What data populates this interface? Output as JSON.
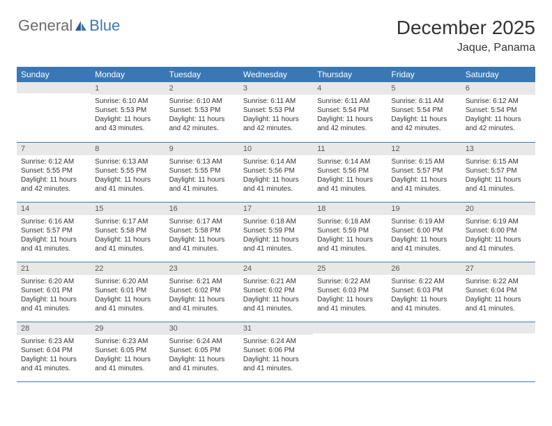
{
  "logo": {
    "general": "General",
    "blue": "Blue"
  },
  "title": "December 2025",
  "location": "Jaque, Panama",
  "colors": {
    "header_bg": "#3a78b5",
    "header_text": "#ffffff",
    "daynum_bg": "#e8e8e8",
    "text": "#333333",
    "rule": "#3a78b5"
  },
  "weekdays": [
    "Sunday",
    "Monday",
    "Tuesday",
    "Wednesday",
    "Thursday",
    "Friday",
    "Saturday"
  ],
  "weeks": [
    [
      {
        "n": "",
        "sr": "",
        "ss": "",
        "dl": ""
      },
      {
        "n": "1",
        "sr": "Sunrise: 6:10 AM",
        "ss": "Sunset: 5:53 PM",
        "dl": "Daylight: 11 hours and 43 minutes."
      },
      {
        "n": "2",
        "sr": "Sunrise: 6:10 AM",
        "ss": "Sunset: 5:53 PM",
        "dl": "Daylight: 11 hours and 42 minutes."
      },
      {
        "n": "3",
        "sr": "Sunrise: 6:11 AM",
        "ss": "Sunset: 5:53 PM",
        "dl": "Daylight: 11 hours and 42 minutes."
      },
      {
        "n": "4",
        "sr": "Sunrise: 6:11 AM",
        "ss": "Sunset: 5:54 PM",
        "dl": "Daylight: 11 hours and 42 minutes."
      },
      {
        "n": "5",
        "sr": "Sunrise: 6:11 AM",
        "ss": "Sunset: 5:54 PM",
        "dl": "Daylight: 11 hours and 42 minutes."
      },
      {
        "n": "6",
        "sr": "Sunrise: 6:12 AM",
        "ss": "Sunset: 5:54 PM",
        "dl": "Daylight: 11 hours and 42 minutes."
      }
    ],
    [
      {
        "n": "7",
        "sr": "Sunrise: 6:12 AM",
        "ss": "Sunset: 5:55 PM",
        "dl": "Daylight: 11 hours and 42 minutes."
      },
      {
        "n": "8",
        "sr": "Sunrise: 6:13 AM",
        "ss": "Sunset: 5:55 PM",
        "dl": "Daylight: 11 hours and 41 minutes."
      },
      {
        "n": "9",
        "sr": "Sunrise: 6:13 AM",
        "ss": "Sunset: 5:55 PM",
        "dl": "Daylight: 11 hours and 41 minutes."
      },
      {
        "n": "10",
        "sr": "Sunrise: 6:14 AM",
        "ss": "Sunset: 5:56 PM",
        "dl": "Daylight: 11 hours and 41 minutes."
      },
      {
        "n": "11",
        "sr": "Sunrise: 6:14 AM",
        "ss": "Sunset: 5:56 PM",
        "dl": "Daylight: 11 hours and 41 minutes."
      },
      {
        "n": "12",
        "sr": "Sunrise: 6:15 AM",
        "ss": "Sunset: 5:57 PM",
        "dl": "Daylight: 11 hours and 41 minutes."
      },
      {
        "n": "13",
        "sr": "Sunrise: 6:15 AM",
        "ss": "Sunset: 5:57 PM",
        "dl": "Daylight: 11 hours and 41 minutes."
      }
    ],
    [
      {
        "n": "14",
        "sr": "Sunrise: 6:16 AM",
        "ss": "Sunset: 5:57 PM",
        "dl": "Daylight: 11 hours and 41 minutes."
      },
      {
        "n": "15",
        "sr": "Sunrise: 6:17 AM",
        "ss": "Sunset: 5:58 PM",
        "dl": "Daylight: 11 hours and 41 minutes."
      },
      {
        "n": "16",
        "sr": "Sunrise: 6:17 AM",
        "ss": "Sunset: 5:58 PM",
        "dl": "Daylight: 11 hours and 41 minutes."
      },
      {
        "n": "17",
        "sr": "Sunrise: 6:18 AM",
        "ss": "Sunset: 5:59 PM",
        "dl": "Daylight: 11 hours and 41 minutes."
      },
      {
        "n": "18",
        "sr": "Sunrise: 6:18 AM",
        "ss": "Sunset: 5:59 PM",
        "dl": "Daylight: 11 hours and 41 minutes."
      },
      {
        "n": "19",
        "sr": "Sunrise: 6:19 AM",
        "ss": "Sunset: 6:00 PM",
        "dl": "Daylight: 11 hours and 41 minutes."
      },
      {
        "n": "20",
        "sr": "Sunrise: 6:19 AM",
        "ss": "Sunset: 6:00 PM",
        "dl": "Daylight: 11 hours and 41 minutes."
      }
    ],
    [
      {
        "n": "21",
        "sr": "Sunrise: 6:20 AM",
        "ss": "Sunset: 6:01 PM",
        "dl": "Daylight: 11 hours and 41 minutes."
      },
      {
        "n": "22",
        "sr": "Sunrise: 6:20 AM",
        "ss": "Sunset: 6:01 PM",
        "dl": "Daylight: 11 hours and 41 minutes."
      },
      {
        "n": "23",
        "sr": "Sunrise: 6:21 AM",
        "ss": "Sunset: 6:02 PM",
        "dl": "Daylight: 11 hours and 41 minutes."
      },
      {
        "n": "24",
        "sr": "Sunrise: 6:21 AM",
        "ss": "Sunset: 6:02 PM",
        "dl": "Daylight: 11 hours and 41 minutes."
      },
      {
        "n": "25",
        "sr": "Sunrise: 6:22 AM",
        "ss": "Sunset: 6:03 PM",
        "dl": "Daylight: 11 hours and 41 minutes."
      },
      {
        "n": "26",
        "sr": "Sunrise: 6:22 AM",
        "ss": "Sunset: 6:03 PM",
        "dl": "Daylight: 11 hours and 41 minutes."
      },
      {
        "n": "27",
        "sr": "Sunrise: 6:22 AM",
        "ss": "Sunset: 6:04 PM",
        "dl": "Daylight: 11 hours and 41 minutes."
      }
    ],
    [
      {
        "n": "28",
        "sr": "Sunrise: 6:23 AM",
        "ss": "Sunset: 6:04 PM",
        "dl": "Daylight: 11 hours and 41 minutes."
      },
      {
        "n": "29",
        "sr": "Sunrise: 6:23 AM",
        "ss": "Sunset: 6:05 PM",
        "dl": "Daylight: 11 hours and 41 minutes."
      },
      {
        "n": "30",
        "sr": "Sunrise: 6:24 AM",
        "ss": "Sunset: 6:05 PM",
        "dl": "Daylight: 11 hours and 41 minutes."
      },
      {
        "n": "31",
        "sr": "Sunrise: 6:24 AM",
        "ss": "Sunset: 6:06 PM",
        "dl": "Daylight: 11 hours and 41 minutes."
      },
      {
        "n": "",
        "sr": "",
        "ss": "",
        "dl": ""
      },
      {
        "n": "",
        "sr": "",
        "ss": "",
        "dl": ""
      },
      {
        "n": "",
        "sr": "",
        "ss": "",
        "dl": ""
      }
    ]
  ]
}
